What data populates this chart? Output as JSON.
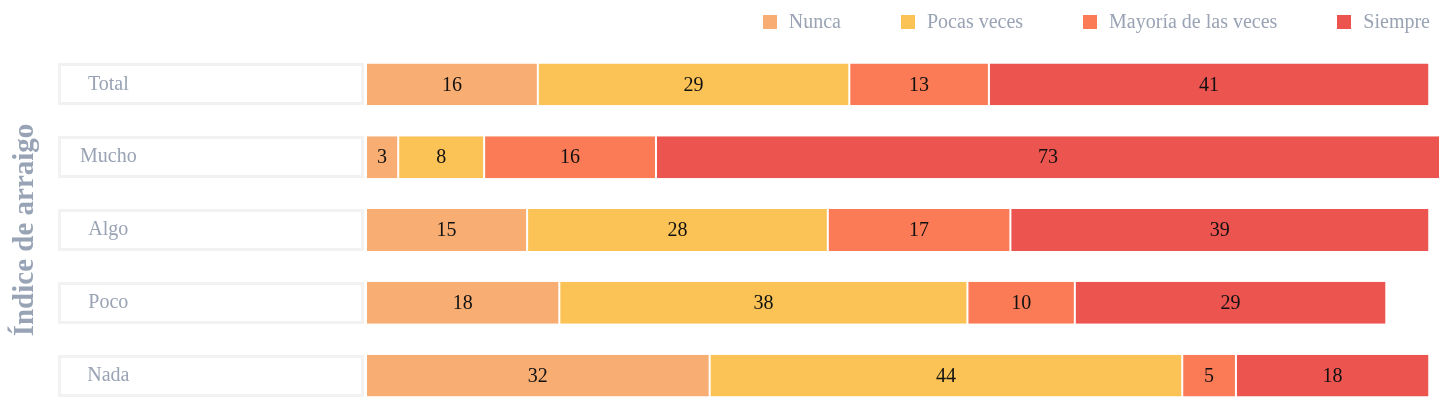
{
  "chart_data": {
    "type": "bar",
    "orientation": "horizontal",
    "stacked": true,
    "ylabel": "Índice de arraigo",
    "categories": [
      "Total",
      "Mucho",
      "Algo",
      "Poco",
      "Nada"
    ],
    "series": [
      {
        "name": "Nunca",
        "color": "#f8ad72",
        "values": [
          16,
          3,
          15,
          18,
          32
        ]
      },
      {
        "name": "Pocas veces",
        "color": "#fbc356",
        "values": [
          29,
          8,
          28,
          38,
          44
        ]
      },
      {
        "name": "Mayoría de las veces",
        "color": "#fa7b55",
        "values": [
          13,
          16,
          17,
          10,
          5
        ]
      },
      {
        "name": "Siempre",
        "color": "#ec544f",
        "values": [
          41,
          73,
          39,
          29,
          18
        ]
      }
    ],
    "data_labels": true,
    "legend": "top right",
    "tick_labels": "y"
  }
}
